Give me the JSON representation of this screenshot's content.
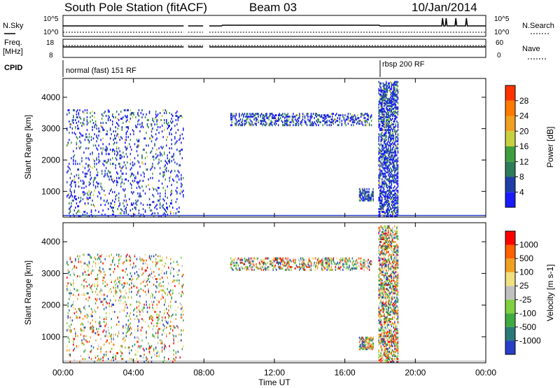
{
  "header": {
    "title": "South Pole Station (fitACF)",
    "beam": "Beam 03",
    "date": "10/Jan/2014"
  },
  "status_panel": {
    "left_labels": {
      "nsky": "N.Sky",
      "freq_line1": "Freq.",
      "freq_line2": "[MHz]",
      "cpid": "CPID"
    },
    "right_labels": {
      "nsearch": "N.Search",
      "nave": "Nave"
    },
    "noise_ticks_left": [
      "10^5",
      "10^0"
    ],
    "noise_ticks_right": [
      "10^5",
      "10^0"
    ],
    "freq_ticks_left": [
      "18",
      "8"
    ],
    "freq_ticks_right": [
      "60",
      "0"
    ],
    "cpid_segments": [
      {
        "label": "normal (fast) 151 RF",
        "start_hour": 0.0,
        "end_hour": 18.0
      },
      {
        "label": "rbsp 200 RF",
        "start_hour": 18.0,
        "end_hour": 24.0
      }
    ],
    "data_gaps_hours": [
      [
        6.85,
        7.05
      ],
      [
        7.95,
        8.25
      ]
    ]
  },
  "x_axis": {
    "label": "Time UT",
    "ticks": [
      "00:00",
      "04:00",
      "08:00",
      "12:00",
      "16:00",
      "20:00",
      "00:00"
    ],
    "tick_hours": [
      0,
      4,
      8,
      12,
      16,
      20,
      24
    ]
  },
  "chart_data": [
    {
      "type": "heatmap",
      "title": "",
      "xlabel": "Time UT",
      "ylabel": "Slant Range [km]",
      "xlim_hours": [
        0,
        24
      ],
      "ylim": [
        180,
        4600
      ],
      "y_ticks": [
        "1000",
        "2000",
        "3000",
        "4000"
      ],
      "y_tick_values": [
        1000,
        2000,
        3000,
        4000
      ],
      "colorbar": {
        "label": "Power [dB]",
        "ticks": [
          "4",
          "8",
          "12",
          "16",
          "20",
          "24",
          "28"
        ],
        "colors": [
          "#1a1aff",
          "#1f3fa8",
          "#2e7d5a",
          "#3f9f3f",
          "#c8d040",
          "#f0a020",
          "#ff7a00",
          "#ff3300"
        ]
      },
      "regions": [
        {
          "name": "early scatter",
          "t_start": 0.2,
          "t_end": 6.8,
          "r_start": 200,
          "r_end": 3600
        },
        {
          "name": "band near 3300 km",
          "t_start": 9.5,
          "t_end": 17.5,
          "r_start": 3100,
          "r_end": 3500
        },
        {
          "name": "afternoon echoes",
          "t_start": 16.8,
          "t_end": 17.6,
          "r_start": 700,
          "r_end": 1100
        },
        {
          "name": "rbsp burst",
          "t_start": 17.9,
          "t_end": 19.0,
          "r_start": 200,
          "r_end": 4500
        }
      ]
    },
    {
      "type": "heatmap",
      "title": "",
      "xlabel": "Time UT",
      "ylabel": "Slant Range [km]",
      "xlim_hours": [
        0,
        24
      ],
      "ylim": [
        180,
        4600
      ],
      "y_ticks": [
        "1000",
        "2000",
        "3000",
        "4000"
      ],
      "y_tick_values": [
        1000,
        2000,
        3000,
        4000
      ],
      "colorbar": {
        "label": "Velocity [m s-1]",
        "ticks": [
          "1000",
          "500",
          "100",
          "25",
          "-25",
          "-100",
          "-500",
          "-1000"
        ],
        "colors": [
          "#2a3fc8",
          "#2a7a7a",
          "#3faa3f",
          "#80d040",
          "#c0c0c0",
          "#f0e080",
          "#f0a020",
          "#ff6000",
          "#ff0000"
        ]
      },
      "regions": [
        {
          "name": "early scatter",
          "t_start": 0.2,
          "t_end": 6.8,
          "r_start": 200,
          "r_end": 3600
        },
        {
          "name": "band near 3300 km",
          "t_start": 9.5,
          "t_end": 17.5,
          "r_start": 3100,
          "r_end": 3500
        },
        {
          "name": "afternoon echoes",
          "t_start": 16.8,
          "t_end": 17.6,
          "r_start": 600,
          "r_end": 1000
        },
        {
          "name": "rbsp burst",
          "t_start": 17.9,
          "t_end": 19.0,
          "r_start": 200,
          "r_end": 4500
        }
      ]
    }
  ]
}
